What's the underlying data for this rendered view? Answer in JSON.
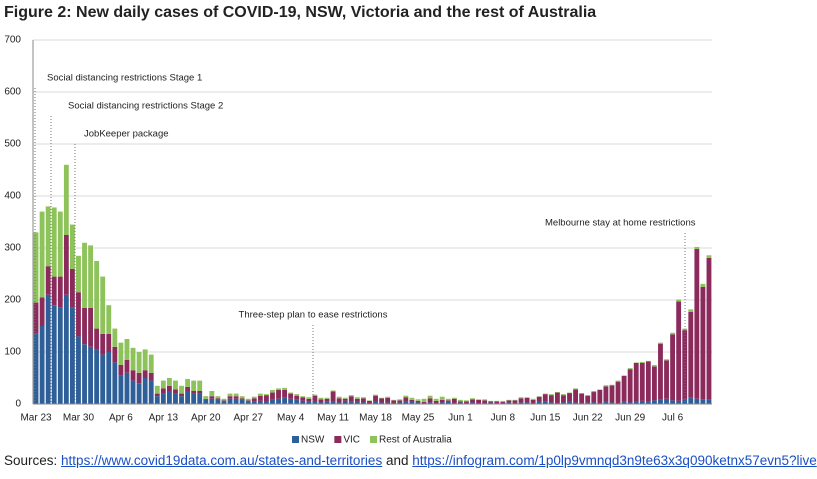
{
  "chart_data": {
    "type": "stacked-bar",
    "title": "Figure 2: New daily cases of COVID-19, NSW, Victoria and the rest of Australia",
    "categories": [
      "Mar 23",
      null,
      null,
      null,
      null,
      null,
      null,
      "Mar 30",
      null,
      null,
      null,
      null,
      null,
      null,
      "Apr 6",
      null,
      null,
      null,
      null,
      null,
      null,
      "Apr 13",
      null,
      null,
      null,
      null,
      null,
      null,
      "Apr 20",
      null,
      null,
      null,
      null,
      null,
      null,
      "Apr 27",
      null,
      null,
      null,
      null,
      null,
      null,
      "May 4",
      null,
      null,
      null,
      null,
      null,
      null,
      "May 11",
      null,
      null,
      null,
      null,
      null,
      null,
      "May 18",
      null,
      null,
      null,
      null,
      null,
      null,
      "May 25",
      null,
      null,
      null,
      null,
      null,
      null,
      "Jun 1",
      null,
      null,
      null,
      null,
      null,
      null,
      "Jun 8",
      null,
      null,
      null,
      null,
      null,
      null,
      "Jun 15",
      null,
      null,
      null,
      null,
      null,
      null,
      "Jun 22",
      null,
      null,
      null,
      null,
      null,
      null,
      "Jun 29",
      null,
      null,
      null,
      null,
      null,
      null,
      "Jul 6",
      null,
      null,
      null,
      null,
      null,
      null
    ],
    "series": [
      {
        "name": "NSW",
        "color": "#2f5f98",
        "values": [
          135,
          150,
          210,
          190,
          185,
          210,
          185,
          130,
          115,
          110,
          105,
          95,
          100,
          80,
          55,
          60,
          45,
          40,
          50,
          45,
          15,
          20,
          25,
          20,
          15,
          25,
          20,
          20,
          8,
          10,
          8,
          5,
          10,
          10,
          8,
          5,
          5,
          6,
          4,
          8,
          10,
          12,
          10,
          8,
          6,
          5,
          4,
          3,
          5,
          4,
          3,
          6,
          5,
          4,
          3,
          2,
          4,
          3,
          3,
          2,
          3,
          5,
          4,
          3,
          2,
          3,
          2,
          3,
          4,
          2,
          3,
          2,
          3,
          1,
          2,
          3,
          2,
          2,
          3,
          2,
          3,
          3,
          2,
          4,
          5,
          3,
          2,
          3,
          4,
          3,
          2,
          3,
          3,
          2,
          4,
          3,
          2,
          5,
          3,
          4,
          6,
          5,
          7,
          8,
          10,
          7,
          6,
          8,
          12,
          10,
          9,
          8
        ]
      },
      {
        "name": "VIC",
        "color": "#8b2b5c",
        "values": [
          60,
          55,
          55,
          55,
          60,
          115,
          75,
          85,
          70,
          75,
          40,
          40,
          35,
          30,
          20,
          25,
          20,
          20,
          15,
          15,
          5,
          10,
          10,
          8,
          5,
          8,
          5,
          5,
          2,
          5,
          3,
          2,
          5,
          5,
          3,
          2,
          6,
          10,
          13,
          14,
          17,
          15,
          10,
          8,
          7,
          5,
          12,
          6,
          5,
          20,
          8,
          4,
          10,
          6,
          8,
          4,
          12,
          8,
          9,
          5,
          4,
          8,
          4,
          3,
          2,
          8,
          4,
          5,
          3,
          8,
          2,
          3,
          6,
          7,
          5,
          2,
          3,
          2,
          4,
          5,
          8,
          9,
          6,
          10,
          14,
          14,
          20,
          14,
          17,
          25,
          18,
          13,
          20,
          25,
          30,
          33,
          41,
          49,
          64,
          75,
          73,
          77,
          65,
          108,
          74,
          127,
          191,
          134,
          165,
          288,
          216,
          273
        ]
      },
      {
        "name": "Rest of Australia",
        "color": "#8dc35a",
        "values": [
          135,
          165,
          115,
          133,
          125,
          135,
          85,
          70,
          125,
          120,
          130,
          110,
          55,
          35,
          43,
          40,
          43,
          40,
          40,
          35,
          15,
          15,
          15,
          17,
          15,
          15,
          20,
          20,
          5,
          10,
          4,
          3,
          5,
          5,
          4,
          3,
          3,
          4,
          2,
          5,
          3,
          4,
          2,
          3,
          2,
          3,
          2,
          3,
          2,
          2,
          3,
          2,
          2,
          3,
          2,
          1,
          2,
          1,
          2,
          1,
          2,
          3,
          4,
          3,
          6,
          5,
          4,
          6,
          3,
          2,
          3,
          2,
          2,
          1,
          2,
          1,
          1,
          2,
          1,
          1,
          2,
          1,
          2,
          1,
          1,
          2,
          1,
          2,
          1,
          2,
          1,
          1,
          2,
          1,
          2,
          1,
          2,
          1,
          2,
          1,
          2,
          1,
          3,
          2,
          2,
          3,
          4,
          3,
          5,
          4,
          6,
          5
        ]
      }
    ],
    "ylim": [
      0,
      700
    ],
    "yticks": [
      0,
      100,
      200,
      300,
      400,
      500,
      600,
      700
    ],
    "grid": true,
    "legend": "bottom",
    "annotations": [
      {
        "text": "Social distancing restrictions Stage 1"
      },
      {
        "text": "Social distancing restrictions Stage 2"
      },
      {
        "text": "JobKeeper package"
      },
      {
        "text": "Three-step plan to ease restrictions"
      },
      {
        "text": "Melbourne stay at home restrictions"
      }
    ]
  },
  "sources": {
    "label": "Sources:",
    "links": [
      "https://www.covid19data.com.au/states-and-territories",
      "https://infogram.com/1p0lp9vmnqd3n9te63x3q090ketnx57evn5?live"
    ],
    "conjunction": "and"
  }
}
